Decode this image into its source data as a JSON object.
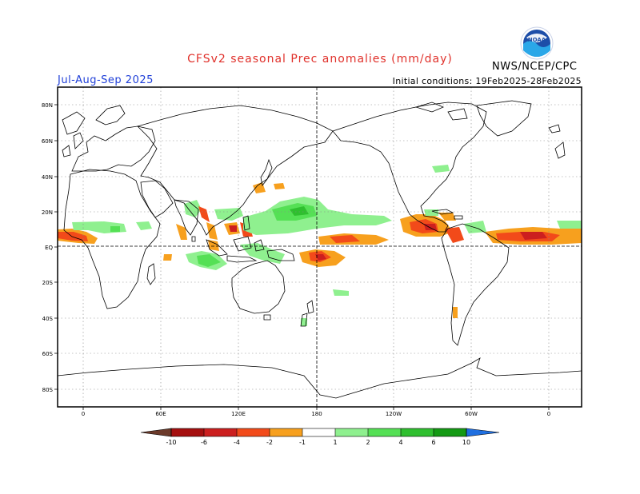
{
  "header": {
    "title": "CFSv2 seasonal Prec anomalies (mm/day)",
    "season": "Jul-Aug-Sep 2025",
    "initial_conditions": "Initial conditions: 19Feb2025-28Feb2025",
    "agency": "NWS/NCEP/CPC",
    "logo_text": "NOAA"
  },
  "axes": {
    "lat_labels": [
      "80N",
      "60N",
      "40N",
      "20N",
      "EQ",
      "20S",
      "40S",
      "60S",
      "80S"
    ],
    "lon_labels": [
      "0",
      "60E",
      "120E",
      "180",
      "120W",
      "60W",
      "0"
    ]
  },
  "colorbar": {
    "labels": [
      "-10",
      "-6",
      "-4",
      "-2",
      "-1",
      "1",
      "2",
      "4",
      "6",
      "10"
    ],
    "colors": {
      "lt_m10": "#6b3a2a",
      "m10_m6": "#a50f0f",
      "m6_m4": "#cc1f1f",
      "m4_m2": "#f24a1a",
      "m2_m1": "#f7a01e",
      "m1_1": "#ffffff",
      "p1_p2": "#8ff08f",
      "p2_p4": "#55e055",
      "p4_p6": "#2fbf2f",
      "p6_p10": "#149a14",
      "gt_p10": "#1f6fe0"
    }
  }
}
